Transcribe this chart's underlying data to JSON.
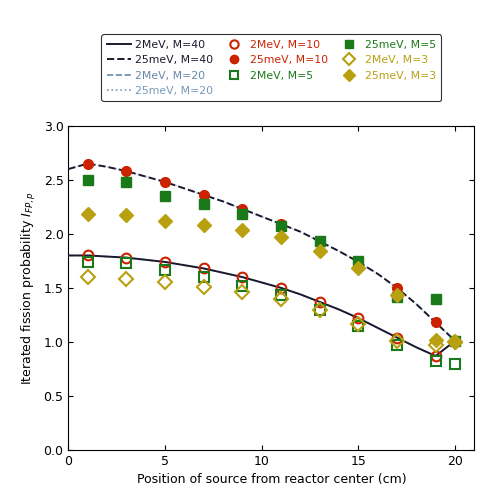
{
  "x_2MeV_M40": [
    0,
    1,
    2,
    3,
    4,
    5,
    6,
    7,
    8,
    9,
    10,
    11,
    12,
    13,
    14,
    15,
    16,
    17,
    18,
    19,
    20
  ],
  "y_2MeV_M40": [
    1.8,
    1.8,
    1.79,
    1.78,
    1.76,
    1.74,
    1.71,
    1.68,
    1.64,
    1.6,
    1.55,
    1.5,
    1.44,
    1.37,
    1.3,
    1.22,
    1.13,
    1.04,
    0.95,
    0.87,
    1.01
  ],
  "x_25meV_M40": [
    0,
    1,
    2,
    3,
    4,
    5,
    6,
    7,
    8,
    9,
    10,
    11,
    12,
    13,
    14,
    15,
    16,
    17,
    18,
    19,
    20
  ],
  "y_25meV_M40": [
    2.6,
    2.65,
    2.62,
    2.58,
    2.53,
    2.48,
    2.42,
    2.36,
    2.3,
    2.23,
    2.16,
    2.09,
    2.02,
    1.93,
    1.84,
    1.74,
    1.63,
    1.5,
    1.35,
    1.18,
    1.01
  ],
  "x_2MeV_M10": [
    1,
    3,
    5,
    7,
    9,
    11,
    13,
    15,
    17,
    19,
    20
  ],
  "y_2MeV_M10": [
    1.8,
    1.78,
    1.74,
    1.68,
    1.6,
    1.5,
    1.37,
    1.22,
    1.04,
    0.87,
    1.01
  ],
  "x_25meV_M10": [
    1,
    3,
    5,
    7,
    9,
    11,
    13,
    15,
    17,
    19,
    20
  ],
  "y_25meV_M10": [
    2.65,
    2.58,
    2.48,
    2.36,
    2.23,
    2.09,
    1.93,
    1.74,
    1.5,
    1.18,
    1.01
  ],
  "x_2MeV_M5": [
    1,
    3,
    5,
    7,
    9,
    11,
    13,
    15,
    17,
    19,
    20
  ],
  "y_2MeV_M5": [
    1.74,
    1.73,
    1.67,
    1.6,
    1.52,
    1.43,
    1.3,
    1.15,
    0.97,
    0.82,
    0.8
  ],
  "x_25meV_M5": [
    1,
    3,
    5,
    7,
    9,
    11,
    13,
    15,
    17,
    19,
    20
  ],
  "y_25meV_M5": [
    2.5,
    2.48,
    2.35,
    2.28,
    2.18,
    2.07,
    1.93,
    1.75,
    1.42,
    1.4,
    1.01
  ],
  "x_2MeV_M3": [
    1,
    3,
    5,
    7,
    9,
    11,
    13,
    15,
    17,
    19,
    20
  ],
  "y_2MeV_M3": [
    1.6,
    1.58,
    1.55,
    1.51,
    1.46,
    1.4,
    1.3,
    1.17,
    1.01,
    0.97,
    1.0
  ],
  "x_25meV_M3": [
    1,
    3,
    5,
    7,
    9,
    11,
    13,
    15,
    17,
    19,
    20
  ],
  "y_25meV_M3": [
    2.18,
    2.17,
    2.12,
    2.08,
    2.04,
    1.97,
    1.84,
    1.68,
    1.43,
    1.02,
    1.0
  ],
  "color_dark": "#1a1a2e",
  "color_gray": "#888888",
  "color_blue_gray": "#6688aa",
  "color_blue_dot": "#7799bb",
  "color_red": "#cc2200",
  "color_green": "#1a7a1a",
  "color_olive": "#b8a010",
  "xlim": [
    0,
    21
  ],
  "ylim": [
    0,
    3.0
  ],
  "xlabel": "Position of source from reactor center (cm)",
  "yticks": [
    0,
    0.5,
    1.0,
    1.5,
    2.0,
    2.5,
    3.0
  ],
  "xticks": [
    0,
    5,
    10,
    15,
    20
  ]
}
